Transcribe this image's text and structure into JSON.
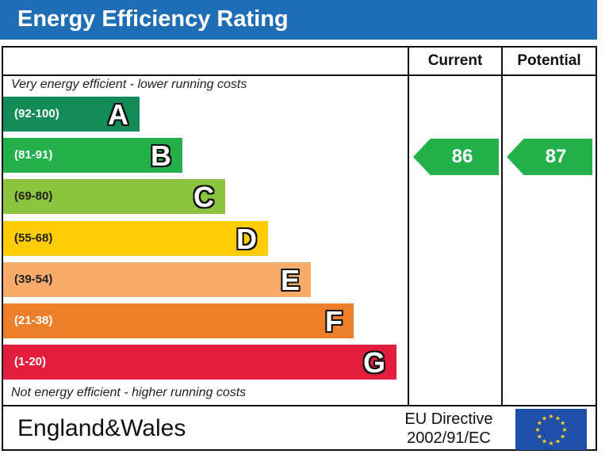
{
  "header": {
    "title": "Energy Efficiency Rating"
  },
  "columns": {
    "current": "Current",
    "potential": "Potential"
  },
  "notes": {
    "top": "Very energy efficient - lower running costs",
    "bottom": "Not energy efficient - higher running costs"
  },
  "footer": {
    "region": "England&Wales",
    "directive_line1": "EU Directive",
    "directive_line2": "2002/91/EC"
  },
  "colors": {
    "title_bg": "#1f6db5",
    "A": "#138c5a",
    "B": "#24b14c",
    "C": "#8dc43f",
    "D": "#ffcc05",
    "E": "#f7ac6c",
    "F": "#ee7f2a",
    "G": "#e31d3c",
    "arrow": "#24b14c"
  },
  "chart_data": {
    "type": "bar",
    "categories": [
      "A",
      "B",
      "C",
      "D",
      "E",
      "F",
      "G"
    ],
    "ranges": [
      "(92-100)",
      "(81-91)",
      "(69-80)",
      "(55-68)",
      "(39-54)",
      "(21-38)",
      "(1-20)"
    ],
    "current": {
      "value": "86",
      "band": "B"
    },
    "potential": {
      "value": "87",
      "band": "B"
    }
  }
}
